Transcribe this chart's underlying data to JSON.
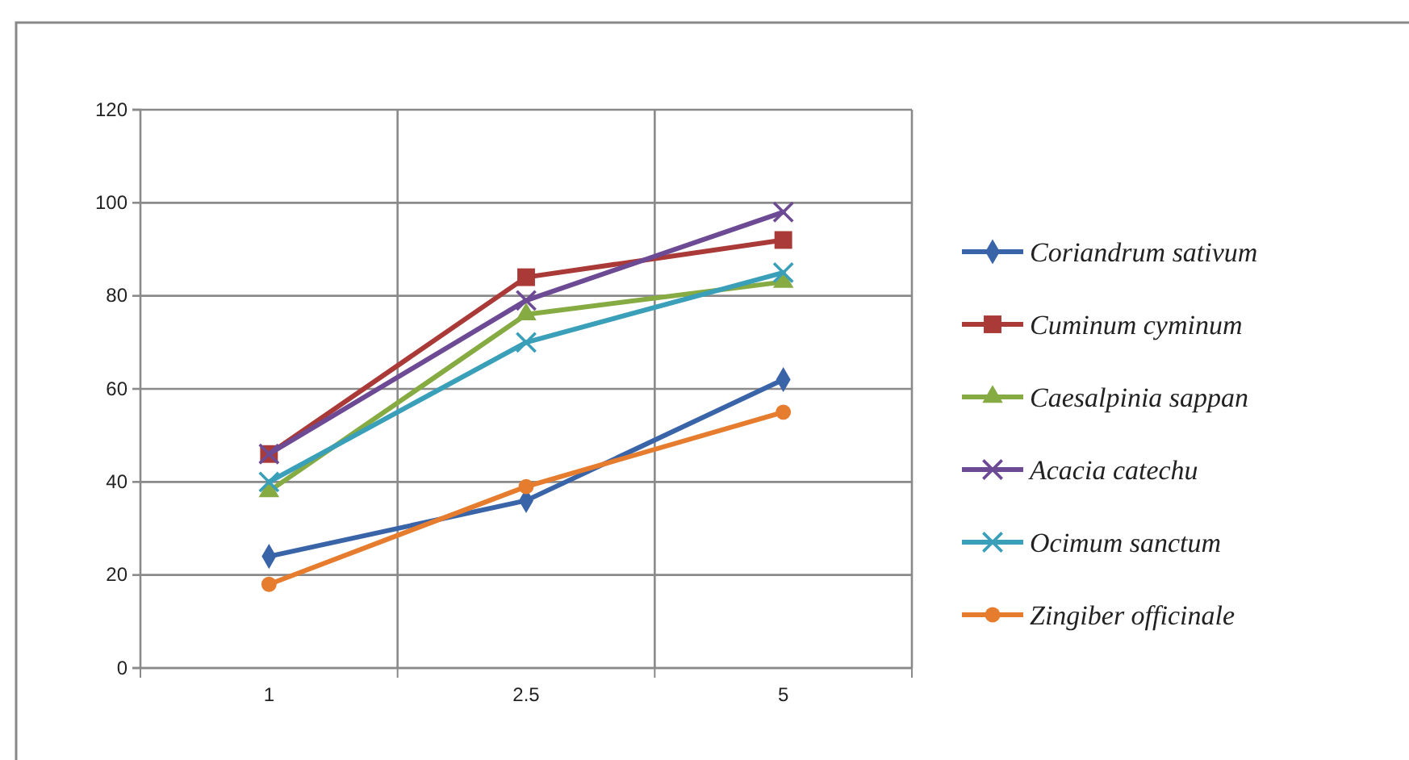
{
  "chart_data": {
    "type": "line",
    "categories": [
      "1",
      "2.5",
      "5"
    ],
    "ylim": [
      0,
      120
    ],
    "yticks": [
      0,
      20,
      40,
      60,
      80,
      100,
      120
    ],
    "grid": true,
    "legend": "right",
    "series": [
      {
        "name": "Coriandrum sativum",
        "color": "#3a64a8",
        "marker": "diamond",
        "values": [
          24,
          36,
          62
        ]
      },
      {
        "name": "Cuminum cyminum",
        "color": "#a93a37",
        "marker": "square",
        "values": [
          46,
          84,
          92
        ]
      },
      {
        "name": "Caesalpinia sappan",
        "color": "#86ab42",
        "marker": "triangle",
        "values": [
          38,
          76,
          83
        ]
      },
      {
        "name": "Acacia catechu",
        "color": "#6d4a94",
        "marker": "cross",
        "values": [
          46,
          79,
          98
        ]
      },
      {
        "name": "Ocimum sanctum",
        "color": "#3a9fb8",
        "marker": "cross",
        "values": [
          40,
          70,
          85
        ]
      },
      {
        "name": "Zingiber officinale",
        "color": "#e57c2e",
        "marker": "circle",
        "values": [
          18,
          39,
          55
        ]
      }
    ]
  }
}
